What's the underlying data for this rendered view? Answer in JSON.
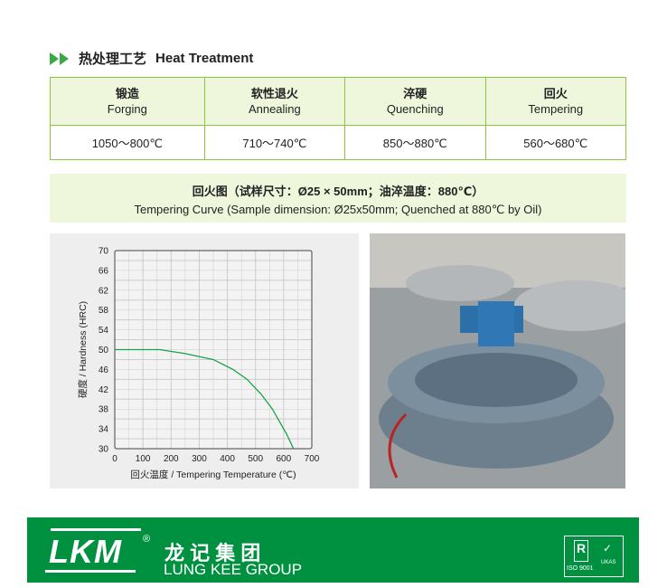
{
  "section": {
    "title_cn": "热处理工艺",
    "title_en": "Heat Treatment"
  },
  "table": {
    "headers": [
      {
        "cn": "锻造",
        "en": "Forging"
      },
      {
        "cn": "软性退火",
        "en": "Annealing"
      },
      {
        "cn": "淬硬",
        "en": "Quenching"
      },
      {
        "cn": "回火",
        "en": "Tempering"
      }
    ],
    "values": [
      "1050～800℃",
      "710～740℃",
      "850～880℃",
      "560～680℃"
    ]
  },
  "chart_caption": {
    "cn": "回火图（试样尺寸：Ø25 × 50mm；油淬温度：880℃）",
    "en": "Tempering Curve (Sample dimension: Ø25x50mm; Quenched at 880℃ by Oil)"
  },
  "chart_data": {
    "type": "line",
    "xlabel": "回火温度 / Tempering Temperature (℃)",
    "ylabel": "硬度 / Hardness (HRC)",
    "xlim": [
      0,
      700
    ],
    "ylim": [
      30,
      70
    ],
    "xticks": [
      0,
      100,
      200,
      300,
      400,
      500,
      600,
      700
    ],
    "yticks": [
      30,
      34,
      38,
      42,
      46,
      50,
      54,
      58,
      62,
      66,
      70
    ],
    "grid": true,
    "series": [
      {
        "color": "#1aa24a",
        "x": [
          0,
          160,
          250,
          350,
          420,
          470,
          520,
          560,
          580,
          610,
          635
        ],
        "y": [
          50,
          50,
          49.2,
          48,
          46,
          44,
          41,
          38,
          36,
          33,
          30
        ]
      }
    ]
  },
  "photo": {
    "description_icon": "furnace-photo"
  },
  "footer": {
    "logo": "LKM",
    "registered": "®",
    "name_cn": "龙 记 集 团",
    "name_en": "LUNG KEE GROUP",
    "cert": "ISO 9001",
    "ukas": "UKAS"
  },
  "colors": {
    "green": "#009140",
    "light_green": "#eef7dc",
    "border": "#8dc63f"
  }
}
